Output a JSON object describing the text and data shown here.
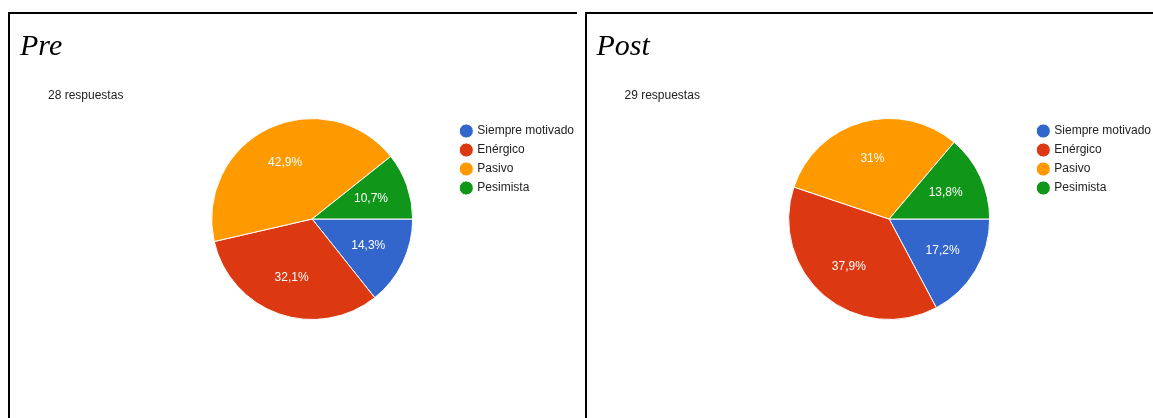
{
  "chart_data": [
    {
      "type": "pie",
      "title": "Pre",
      "subtitle": "28 respuestas",
      "categories": [
        "Siempre motivado",
        "Enérgico",
        "Pasivo",
        "Pesimista"
      ],
      "values": [
        14.3,
        32.1,
        42.9,
        10.7
      ],
      "value_labels": [
        "14,3%",
        "32,1%",
        "42,9%",
        "10,7%"
      ],
      "colors": [
        "#3366cc",
        "#dc3912",
        "#ff9900",
        "#109618"
      ],
      "legend": "top right"
    },
    {
      "type": "pie",
      "title": "Post",
      "subtitle": "29 respuestas",
      "categories": [
        "Siempre motivado",
        "Enérgico",
        "Pasivo",
        "Pesimista"
      ],
      "values": [
        17.2,
        37.9,
        31,
        13.8
      ],
      "value_labels": [
        "17,2%",
        "37,9%",
        "31%",
        "13,8%"
      ],
      "colors": [
        "#3366cc",
        "#dc3912",
        "#ff9900",
        "#109618"
      ],
      "legend": "top right"
    }
  ]
}
